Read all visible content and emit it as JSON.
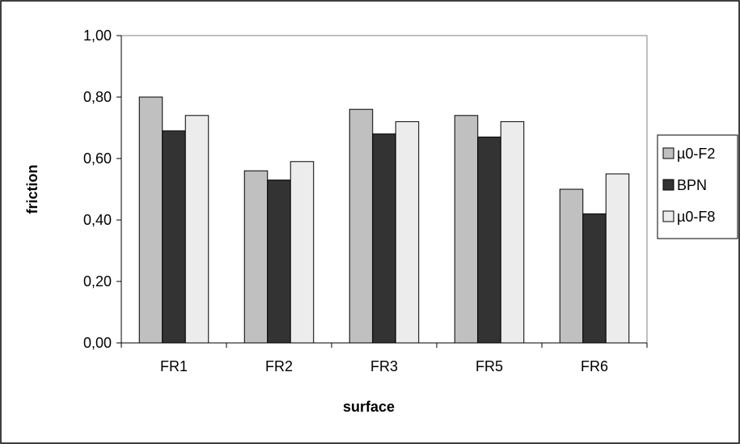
{
  "chart_data": {
    "type": "bar",
    "title": "",
    "xlabel": "surface",
    "ylabel": "friction",
    "categories": [
      "FR1",
      "FR2",
      "FR3",
      "FR5",
      "FR6"
    ],
    "series": [
      {
        "name": "µ0-F2",
        "color": "#c0c0c0",
        "values": [
          0.8,
          0.56,
          0.76,
          0.74,
          0.5
        ]
      },
      {
        "name": "BPN",
        "color": "#333333",
        "values": [
          0.69,
          0.53,
          0.68,
          0.67,
          0.42
        ]
      },
      {
        "name": "µ0-F8",
        "color": "#ececec",
        "values": [
          0.74,
          0.59,
          0.72,
          0.72,
          0.55
        ]
      }
    ],
    "ylim": [
      0,
      1.0
    ],
    "yticks": [
      0.0,
      0.2,
      0.4,
      0.6,
      0.8,
      1.0
    ],
    "ytick_labels": [
      "0,00",
      "0,20",
      "0,40",
      "0,60",
      "0,80",
      "1,00"
    ],
    "grid": false,
    "legend_position": "right"
  }
}
